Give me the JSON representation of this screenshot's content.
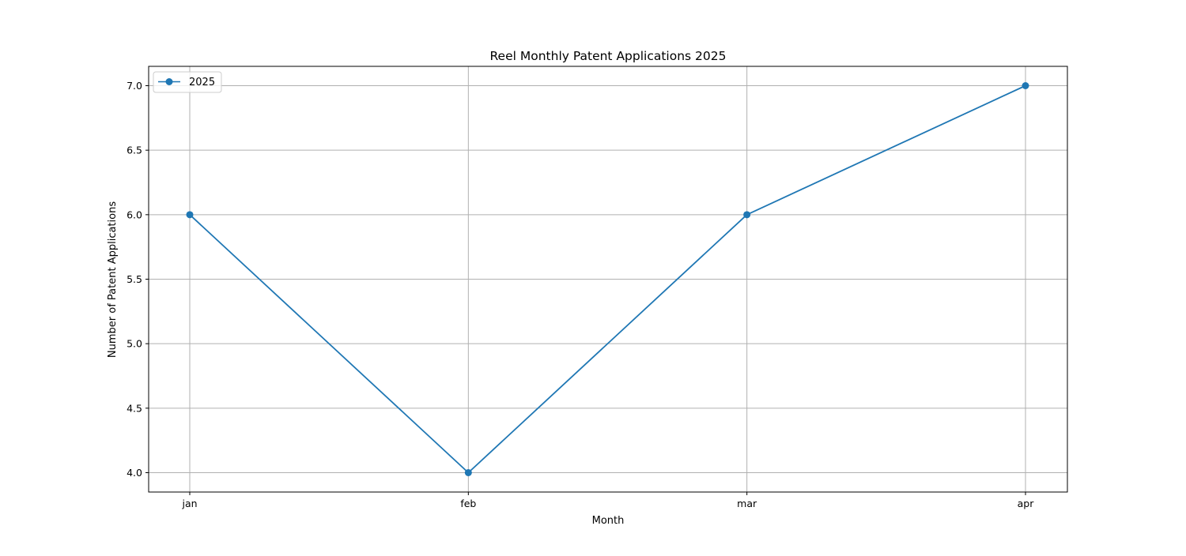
{
  "chart_data": {
    "type": "line",
    "title": "Reel Monthly Patent Applications 2025",
    "xlabel": "Month",
    "ylabel": "Number of Patent Applications",
    "categories": [
      "jan",
      "feb",
      "mar",
      "apr"
    ],
    "series": [
      {
        "name": "2025",
        "values": [
          6,
          4,
          6,
          7
        ],
        "color": "#1f77b4",
        "marker": "circle"
      }
    ],
    "ylim": [
      3.85,
      7.15
    ],
    "yticks": [
      4.0,
      4.5,
      5.0,
      5.5,
      6.0,
      6.5,
      7.0
    ],
    "ytick_labels": [
      "4.0",
      "4.5",
      "5.0",
      "5.5",
      "6.0",
      "6.5",
      "7.0"
    ],
    "grid": true,
    "grid_color": "#b0b0b0",
    "legend_position": "upper-left"
  }
}
